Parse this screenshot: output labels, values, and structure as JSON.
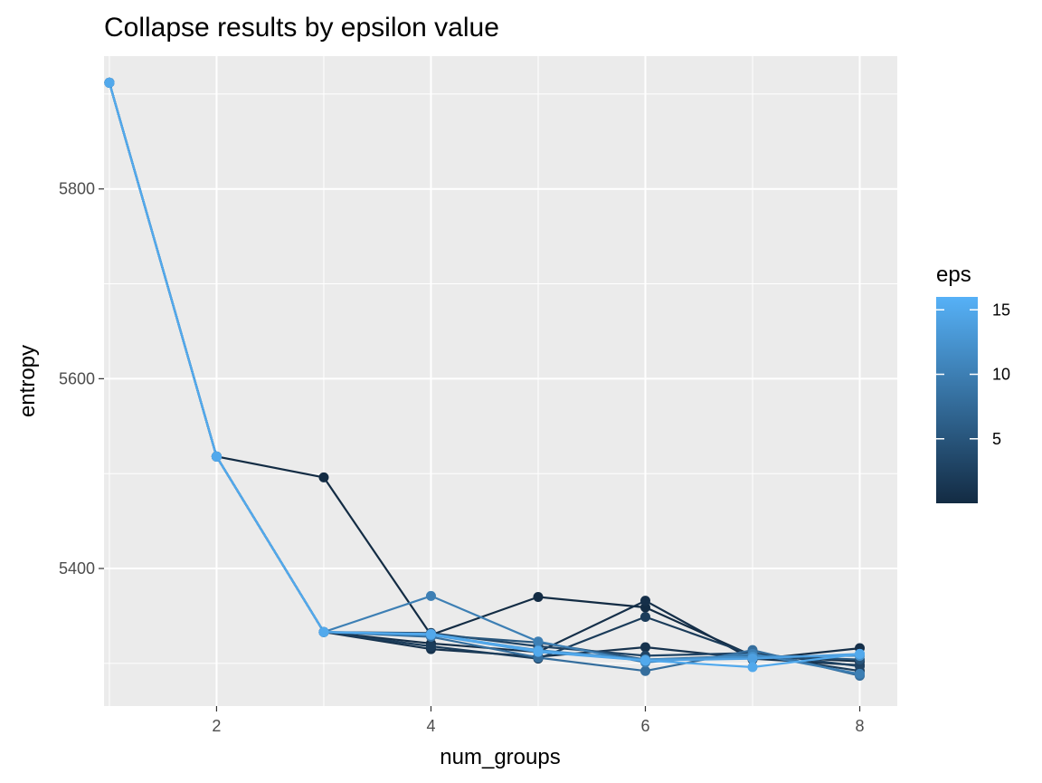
{
  "chart_data": {
    "type": "line",
    "title": "Collapse results by epsilon value",
    "xlabel": "num_groups",
    "ylabel": "entropy",
    "xlim": [
      0.95,
      8.35
    ],
    "ylim": [
      5255,
      5940
    ],
    "x_ticks": [
      2,
      4,
      6,
      8
    ],
    "y_ticks": [
      5400,
      5600,
      5800
    ],
    "grid": true,
    "legend": {
      "title": "eps",
      "type": "colorbar",
      "position": "right",
      "range": [
        0,
        16
      ],
      "ticks": [
        5,
        10,
        15
      ],
      "low_color": "#132B43",
      "high_color": "#56B1F7"
    },
    "x": [
      1,
      2,
      3,
      4,
      5,
      6,
      7,
      8
    ],
    "series": [
      {
        "eps": 0.1,
        "values": [
          5912,
          5518,
          5496,
          5330,
          5370,
          5359,
          5308,
          5302
        ]
      },
      {
        "eps": 0.5,
        "values": [
          5912,
          5518,
          5333,
          5321,
          5312,
          5366,
          5304,
          5316
        ]
      },
      {
        "eps": 1,
        "values": [
          5912,
          5518,
          5333,
          5315,
          5307,
          5317,
          5305,
          5298
        ]
      },
      {
        "eps": 2,
        "values": [
          5912,
          5518,
          5333,
          5318,
          5305,
          5349,
          5309,
          5292
        ]
      },
      {
        "eps": 3,
        "values": [
          5912,
          5518,
          5333,
          5332,
          5318,
          5308,
          5311,
          5297
        ]
      },
      {
        "eps": 5,
        "values": [
          5912,
          5518,
          5333,
          5330,
          5322,
          5304,
          5308,
          5304
        ]
      },
      {
        "eps": 8,
        "values": [
          5912,
          5518,
          5333,
          5328,
          5306,
          5292,
          5314,
          5287
        ]
      },
      {
        "eps": 10,
        "values": [
          5912,
          5518,
          5333,
          5371,
          5323,
          5301,
          5310,
          5289
        ]
      },
      {
        "eps": 12,
        "values": [
          5912,
          5518,
          5333,
          5330,
          5314,
          5304,
          5307,
          5308
        ]
      },
      {
        "eps": 14,
        "values": [
          5912,
          5518,
          5333,
          5330,
          5312,
          5303,
          5305,
          5310
        ]
      },
      {
        "eps": 15,
        "values": [
          5912,
          5518,
          5333,
          5331,
          5313,
          5303,
          5296,
          5310
        ]
      }
    ]
  }
}
